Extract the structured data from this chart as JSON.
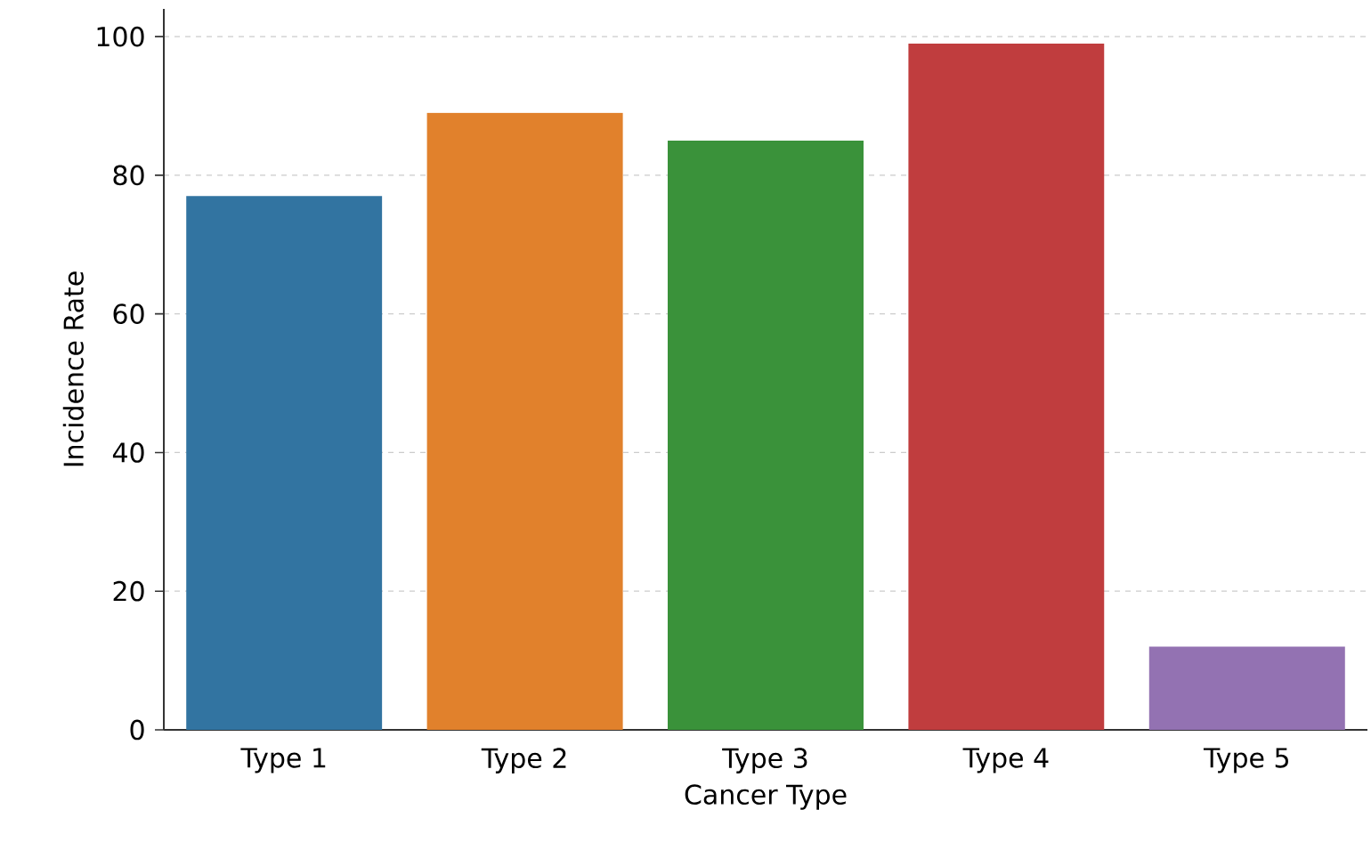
{
  "chart_data": {
    "type": "bar",
    "xlabel": "Cancer Type",
    "ylabel": "Incidence Rate",
    "categories": [
      "Type 1",
      "Type 2",
      "Type 3",
      "Type 4",
      "Type 5"
    ],
    "values": [
      77,
      89,
      85,
      99,
      12
    ],
    "colors": [
      "#3274a1",
      "#e1812c",
      "#3a923a",
      "#c03d3e",
      "#9372b2"
    ],
    "ylim": [
      0,
      104
    ],
    "yticks": [
      0,
      20,
      40,
      60,
      80,
      100
    ],
    "grid": "y"
  }
}
